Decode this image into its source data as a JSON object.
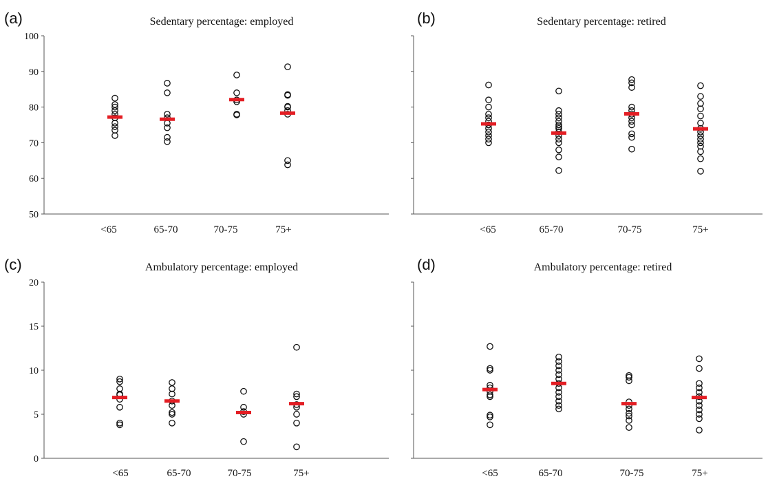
{
  "chart_data": [
    {
      "panel_label": "(a)",
      "type": "scatter",
      "title": "Sedentary percentage: employed",
      "categories": [
        "<65",
        "65-70",
        "70-75",
        "75+"
      ],
      "ylim": [
        50,
        100
      ],
      "yticks": [
        50,
        60,
        70,
        80,
        90,
        100
      ],
      "show_y_tick_labels": true,
      "points": [
        [
          72.0,
          73.5,
          74.5,
          75.5,
          77.0,
          78.0,
          79.0,
          80.0,
          80.7,
          82.5
        ],
        [
          70.3,
          71.5,
          74.2,
          75.5,
          77.0,
          78.0,
          84.0,
          86.7
        ],
        [
          77.8,
          78.0,
          81.5,
          82.0,
          84.0,
          89.0
        ],
        [
          63.8,
          65.0,
          78.0,
          79.0,
          80.0,
          80.2,
          83.3,
          83.5,
          91.3
        ]
      ],
      "means": [
        77.2,
        76.6,
        82.1,
        78.3
      ],
      "mean_color": "#e31e24"
    },
    {
      "panel_label": "(b)",
      "type": "scatter",
      "title": "Sedentary percentage: retired",
      "categories": [
        "<65",
        "65-70",
        "70-75",
        "75+"
      ],
      "ylim": [
        50,
        100
      ],
      "yticks": [
        50,
        60,
        70,
        80,
        90,
        100
      ],
      "show_y_tick_labels": false,
      "points": [
        [
          70.0,
          71.0,
          72.0,
          73.0,
          74.0,
          75.0,
          76.0,
          77.0,
          78.0,
          80.0,
          82.0,
          86.2
        ],
        [
          62.2,
          66.0,
          68.0,
          70.0,
          71.0,
          72.0,
          73.0,
          74.0,
          74.5,
          75.0,
          76.0,
          77.0,
          78.0,
          79.0,
          84.5
        ],
        [
          68.2,
          71.5,
          72.5,
          75.0,
          76.0,
          77.0,
          78.0,
          79.0,
          80.0,
          85.5,
          86.8,
          87.7
        ],
        [
          62.0,
          65.5,
          67.5,
          69.0,
          70.0,
          71.0,
          72.0,
          73.0,
          74.0,
          75.5,
          77.5,
          79.5,
          81.0,
          83.0,
          86.0
        ]
      ],
      "means": [
        75.3,
        72.7,
        78.1,
        73.9
      ],
      "mean_color": "#e31e24"
    },
    {
      "panel_label": "(c)",
      "type": "scatter",
      "title": "Ambulatory percentage: employed",
      "categories": [
        "<65",
        "65-70",
        "70-75",
        "75+"
      ],
      "ylim": [
        0,
        20
      ],
      "yticks": [
        0,
        5,
        10,
        15,
        20
      ],
      "show_y_tick_labels": true,
      "points": [
        [
          3.8,
          4.0,
          5.8,
          6.7,
          7.2,
          7.3,
          7.9,
          8.7,
          9.0
        ],
        [
          4.0,
          5.0,
          5.2,
          6.0,
          6.5,
          7.3,
          7.9,
          8.6
        ],
        [
          1.9,
          5.0,
          5.3,
          5.8,
          7.6
        ],
        [
          1.3,
          4.0,
          5.0,
          5.8,
          6.1,
          7.0,
          7.3,
          12.6
        ]
      ],
      "means": [
        6.9,
        6.5,
        5.2,
        6.2
      ],
      "mean_color": "#e31e24"
    },
    {
      "panel_label": "(d)",
      "type": "scatter",
      "title": "Ambulatory percentage: retired",
      "categories": [
        "<65",
        "65-70",
        "70-75",
        "75+"
      ],
      "ylim": [
        0,
        20
      ],
      "yticks": [
        0,
        5,
        10,
        15,
        20
      ],
      "show_y_tick_labels": false,
      "points": [
        [
          3.8,
          4.7,
          4.9,
          7.0,
          7.2,
          7.6,
          8.0,
          8.3,
          10.0,
          10.2,
          12.7
        ],
        [
          5.6,
          6.0,
          6.5,
          7.0,
          7.5,
          8.0,
          8.5,
          9.0,
          9.5,
          10.0,
          10.5,
          11.0,
          11.5
        ],
        [
          3.5,
          4.3,
          4.8,
          5.1,
          5.6,
          6.0,
          6.4,
          8.8,
          9.2,
          9.4
        ],
        [
          3.2,
          4.5,
          5.0,
          5.5,
          6.0,
          6.5,
          7.0,
          7.5,
          8.0,
          8.5,
          10.2,
          11.3
        ]
      ],
      "means": [
        7.8,
        8.5,
        6.2,
        6.9
      ],
      "mean_color": "#e31e24"
    }
  ]
}
